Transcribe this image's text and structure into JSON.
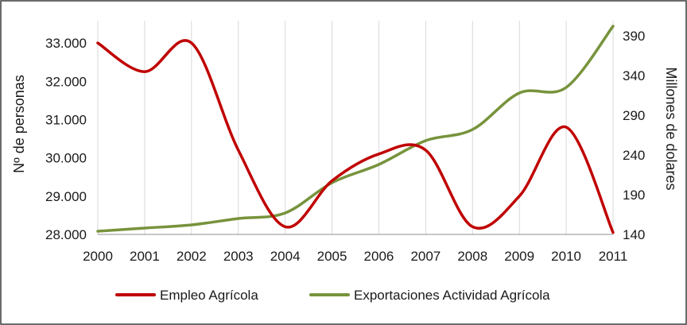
{
  "chart_data": {
    "type": "line",
    "x": [
      "2000",
      "2001",
      "2002",
      "2003",
      "2004",
      "2005",
      "2006",
      "2007",
      "2008",
      "2009",
      "2010",
      "2011"
    ],
    "series": [
      {
        "name": "Empleo Agrícola",
        "axis": "left",
        "color": "#c00000",
        "values": [
          33000,
          32250,
          33000,
          30200,
          28200,
          29400,
          30100,
          30200,
          28200,
          29000,
          30800,
          28050
        ]
      },
      {
        "name": "Exportaciones Actividad Agrícola",
        "axis": "right",
        "color": "#77933c",
        "values": [
          144,
          148,
          152,
          160,
          167,
          205,
          228,
          258,
          272,
          318,
          325,
          402
        ]
      }
    ],
    "ylabel": "Nº de personas",
    "y2label": "Millones de dolares",
    "ylim": [
      28000,
      33500
    ],
    "y2lim": [
      140,
      405
    ],
    "yticks": [
      "28.000",
      "29.000",
      "30.000",
      "31.000",
      "32.000",
      "33.000"
    ],
    "y2ticks": [
      "140",
      "190",
      "240",
      "290",
      "340",
      "390"
    ],
    "grid": "vertical",
    "legend": "bottom"
  }
}
